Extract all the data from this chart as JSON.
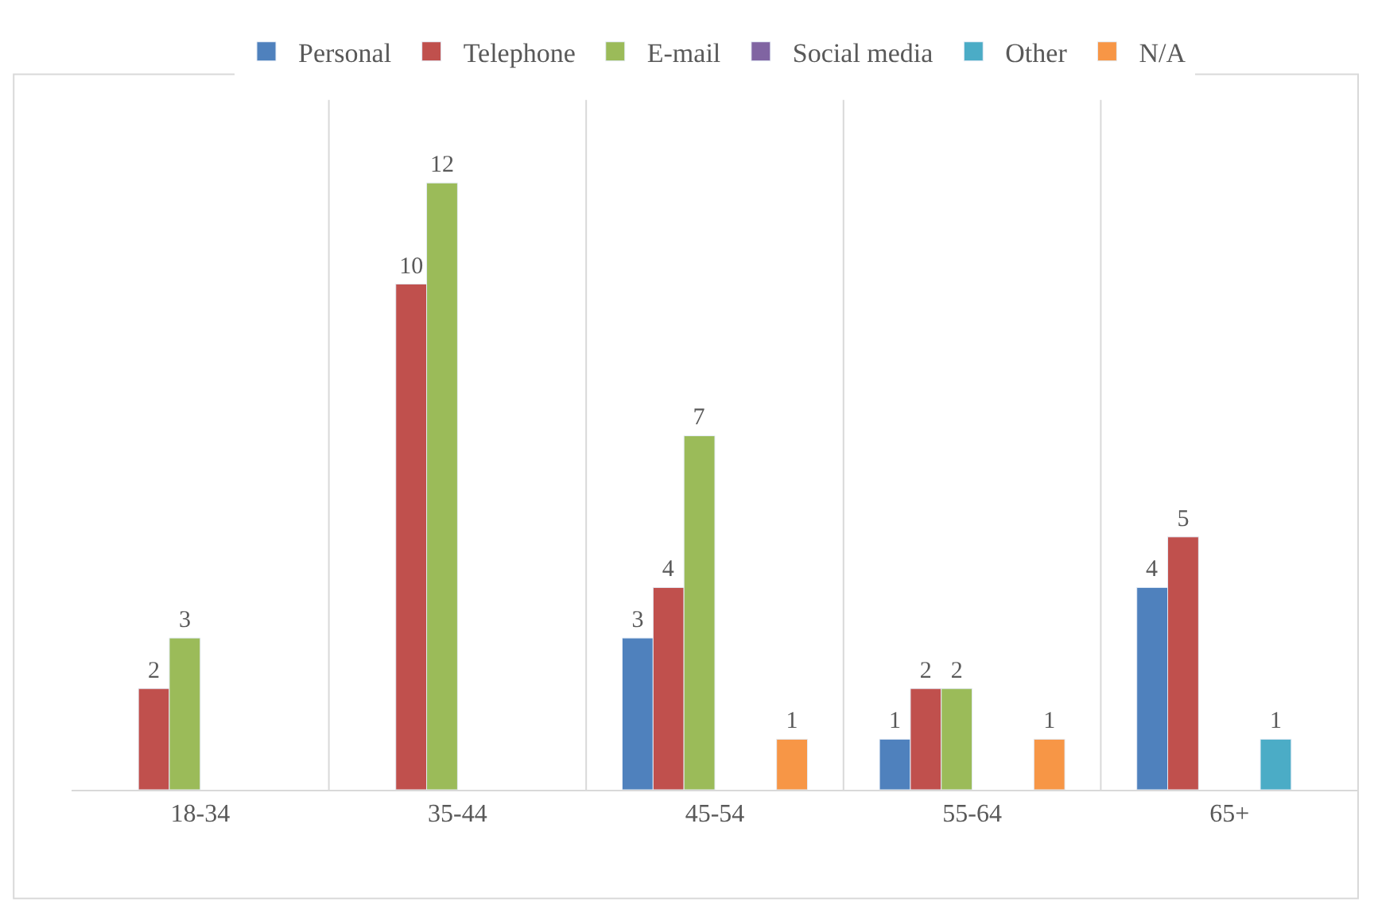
{
  "chart_data": {
    "type": "bar",
    "categories": [
      "18-34",
      "35-44",
      "45-54",
      "55-64",
      "65+"
    ],
    "series": [
      {
        "name": "Personal",
        "color": "#4f81bd",
        "values": [
          null,
          null,
          3,
          1,
          4
        ]
      },
      {
        "name": "Telephone",
        "color": "#c0504d",
        "values": [
          2,
          10,
          4,
          2,
          5
        ]
      },
      {
        "name": "E-mail",
        "color": "#9bbb59",
        "values": [
          3,
          12,
          7,
          2,
          null
        ]
      },
      {
        "name": "Social media",
        "color": "#8064a2",
        "values": [
          null,
          null,
          null,
          null,
          null
        ]
      },
      {
        "name": "Other",
        "color": "#4bacc6",
        "values": [
          null,
          null,
          null,
          null,
          1
        ]
      },
      {
        "name": "N/A",
        "color": "#f79646",
        "values": [
          null,
          null,
          1,
          1,
          null
        ]
      }
    ],
    "data_labels": true,
    "grid": "x",
    "legend": "top"
  }
}
